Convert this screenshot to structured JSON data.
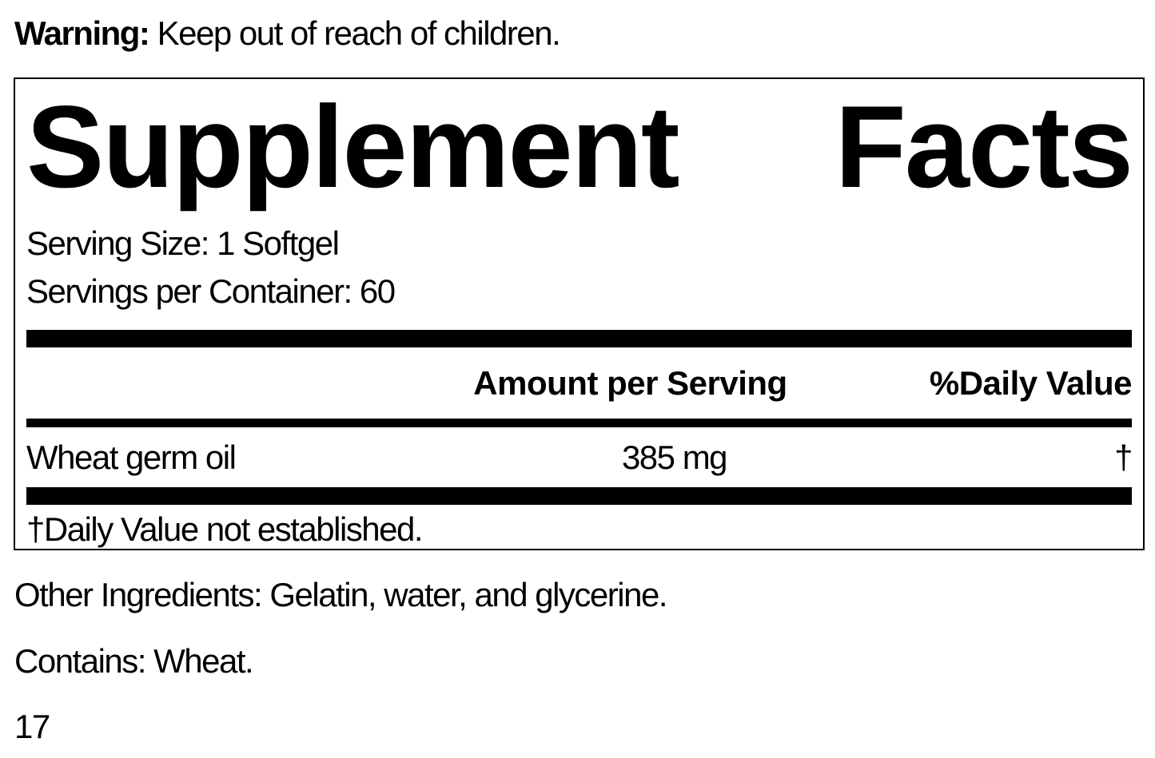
{
  "warning": {
    "label": "Warning:",
    "text": "Keep out of reach of children."
  },
  "facts": {
    "title": "Supplement Facts",
    "serving_size": "Serving Size: 1 Softgel",
    "servings_per_container": "Servings per Container: 60",
    "header": [
      "Amount per Serving",
      "%Daily Value"
    ],
    "rows": [
      [
        "Wheat germ oil",
        "385 mg",
        "†"
      ]
    ],
    "footnote": "†Daily Value not established."
  },
  "other_ingredients": "Other Ingredients: Gelatin, water, and glycerine.",
  "contains": "Contains: Wheat.",
  "code": "17"
}
